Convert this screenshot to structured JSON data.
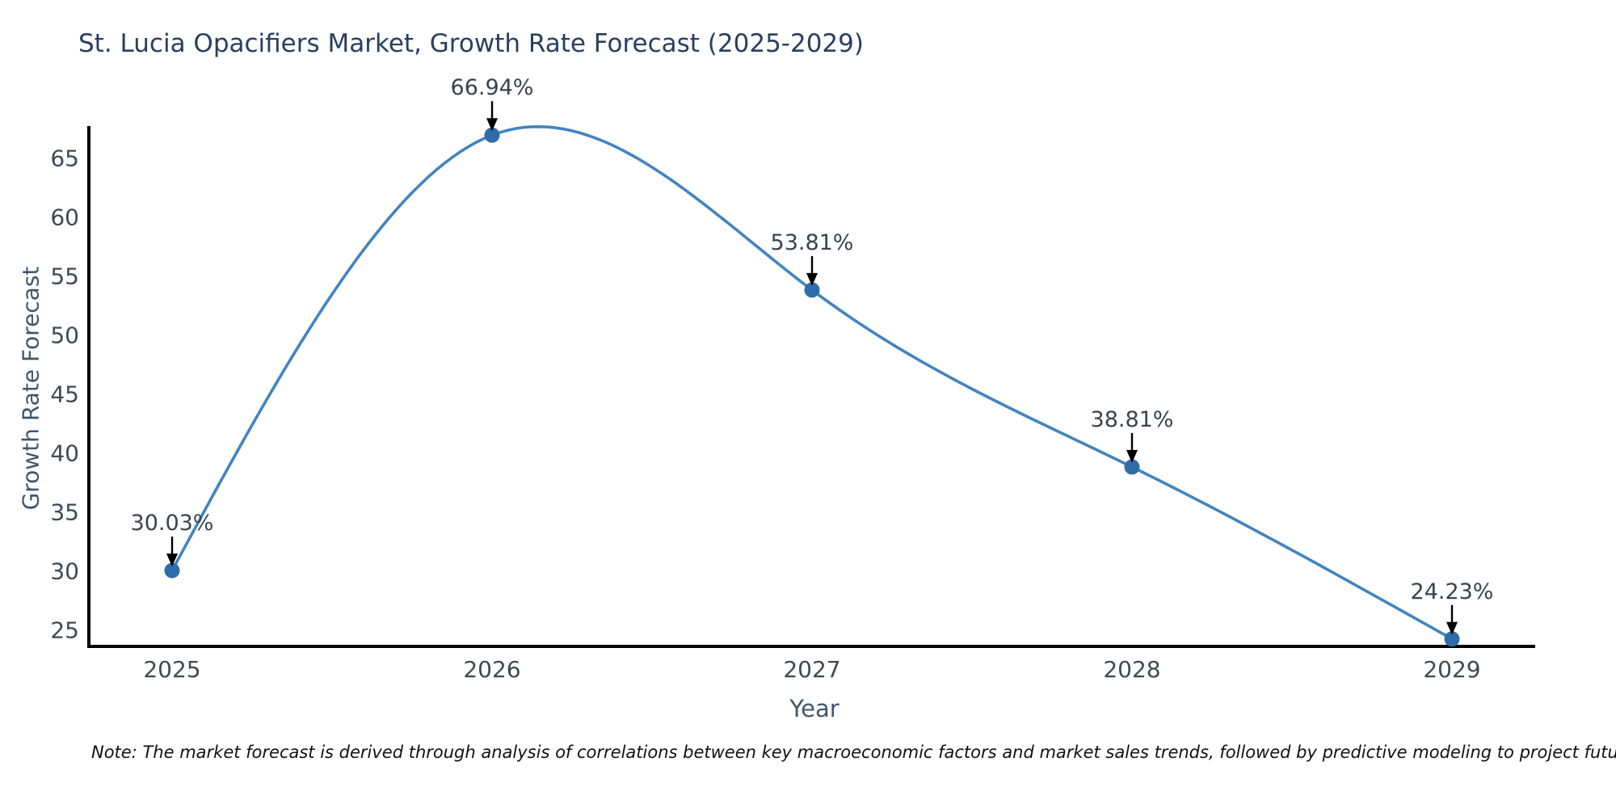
{
  "note": "Note: The market forecast is derived through analysis of correlations between key macroeconomic factors and market sales trends, followed by predictive modeling to project future sales",
  "chart_data": {
    "type": "line",
    "title": "St. Lucia Opacifiers Market, Growth Rate Forecast (2025-2029)",
    "xlabel": "Year",
    "ylabel": "Growth Rate Forecast",
    "x": [
      2025,
      2026,
      2027,
      2028,
      2029
    ],
    "categories": [
      "2025",
      "2026",
      "2027",
      "2028",
      "2029"
    ],
    "values": [
      30.03,
      66.94,
      53.81,
      38.81,
      24.23
    ],
    "point_labels": [
      "30.03%",
      "66.94%",
      "53.81%",
      "38.81%",
      "24.23%"
    ],
    "yticks": [
      25,
      30,
      35,
      40,
      45,
      50,
      55,
      60,
      65
    ],
    "ylim": [
      23.6,
      67.6
    ],
    "line_shape": "spline",
    "grid": false,
    "legend_position": "none",
    "annotations_arrow": "down-to-point",
    "colors": {
      "line": "#4384bf",
      "marker": "#2e6da8",
      "axis": "#000000",
      "arrow": "#000000",
      "title_text": "#2a3f5f",
      "tick_text": "#3f4a55",
      "axis_label_text": "#42566b",
      "annotation_text": "#39434e",
      "background": "#ffffff"
    }
  }
}
